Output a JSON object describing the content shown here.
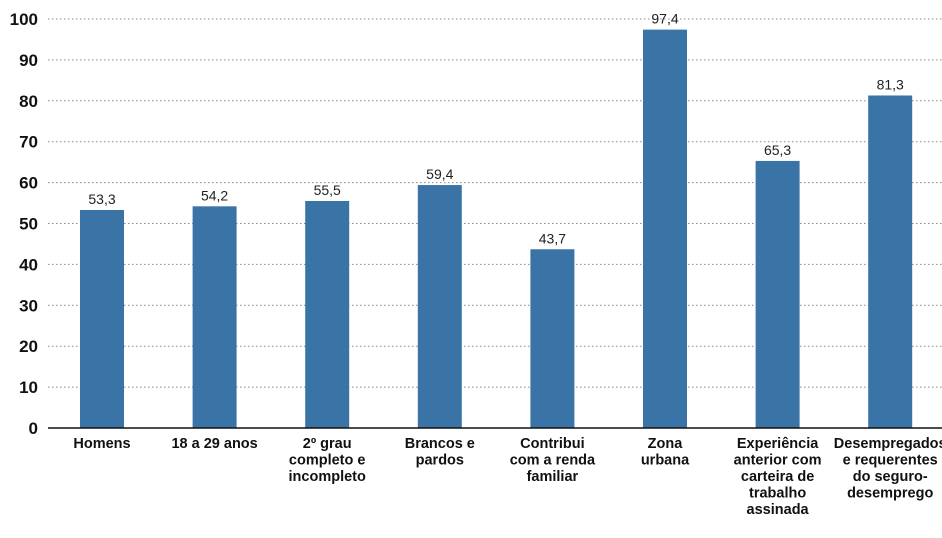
{
  "chart_data": {
    "type": "bar",
    "title": "",
    "xlabel": "",
    "ylabel": "",
    "ylim": [
      0,
      100
    ],
    "yticks": [
      0,
      10,
      20,
      30,
      40,
      50,
      60,
      70,
      80,
      90,
      100
    ],
    "grid": true,
    "bar_color": "#3a74a6",
    "categories": [
      [
        "Homens"
      ],
      [
        "18 a 29 anos"
      ],
      [
        "2º grau",
        "completo e",
        "incompleto"
      ],
      [
        "Brancos e",
        "pardos"
      ],
      [
        "Contribui",
        "com a renda",
        "familiar"
      ],
      [
        "Zona",
        "urbana"
      ],
      [
        "Experiência",
        "anterior com",
        "carteira de",
        "trabalho",
        "assinada"
      ],
      [
        "Desempregados",
        "e requerentes",
        "do seguro-",
        "desemprego"
      ]
    ],
    "values": [
      53.3,
      54.2,
      55.5,
      59.4,
      43.7,
      97.4,
      65.3,
      81.3
    ],
    "value_labels": [
      "53,3",
      "54,2",
      "55,5",
      "59,4",
      "43,7",
      "97,4",
      "65,3",
      "81,3"
    ]
  }
}
